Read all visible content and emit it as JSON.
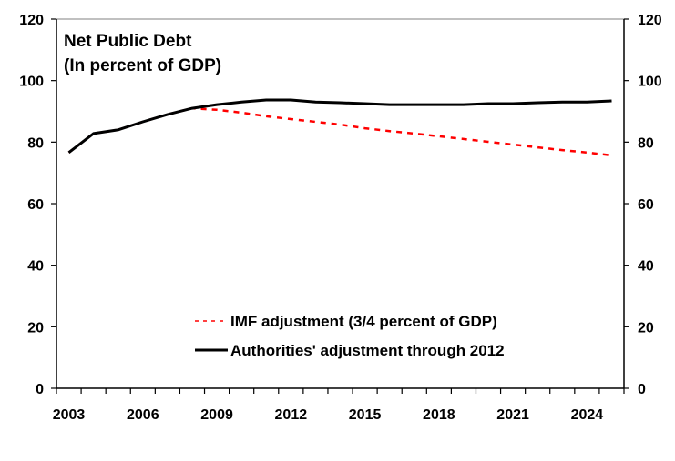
{
  "chart_data": {
    "type": "line",
    "title": "Net Public Debt",
    "subtitle": "(In percent of GDP)",
    "xlabel": "",
    "ylabel": "",
    "x": [
      2003,
      2004,
      2005,
      2006,
      2007,
      2008,
      2009,
      2010,
      2011,
      2012,
      2013,
      2014,
      2015,
      2016,
      2017,
      2018,
      2019,
      2020,
      2021,
      2022,
      2023,
      2024,
      2025
    ],
    "x_tick_labels": [
      "2003",
      "2006",
      "2009",
      "2012",
      "2015",
      "2018",
      "2021",
      "2024"
    ],
    "ylim": [
      0,
      120
    ],
    "y_ticks": [
      0,
      20,
      40,
      60,
      80,
      100,
      120
    ],
    "y_tick_labels_left": [
      "0",
      "20",
      "40",
      "60",
      "80",
      "100",
      "120"
    ],
    "y_tick_labels_right": [
      "0",
      "20",
      "40",
      "60",
      "80",
      "100",
      "120"
    ],
    "grid": false,
    "legend_position": "bottom-center",
    "series": [
      {
        "name": "IMF adjustment (3/4 percent of GDP)",
        "style": "dashed",
        "color": "#ff0000",
        "values": [
          76.6,
          82.8,
          84.0,
          86.6,
          89.0,
          91.0,
          90.5,
          89.6,
          88.4,
          87.5,
          86.6,
          85.7,
          84.5,
          83.6,
          82.8,
          81.9,
          81.0,
          80.1,
          79.2,
          78.3,
          77.4,
          76.6,
          75.7
        ]
      },
      {
        "name": "Authorities' adjustment through 2012",
        "style": "solid",
        "color": "#000000",
        "values": [
          76.6,
          82.8,
          84.0,
          86.6,
          89.0,
          91.0,
          92.2,
          93.0,
          93.7,
          93.7,
          93.0,
          92.8,
          92.5,
          92.2,
          92.2,
          92.2,
          92.2,
          92.5,
          92.5,
          92.8,
          93.0,
          93.0,
          93.4
        ]
      }
    ]
  }
}
